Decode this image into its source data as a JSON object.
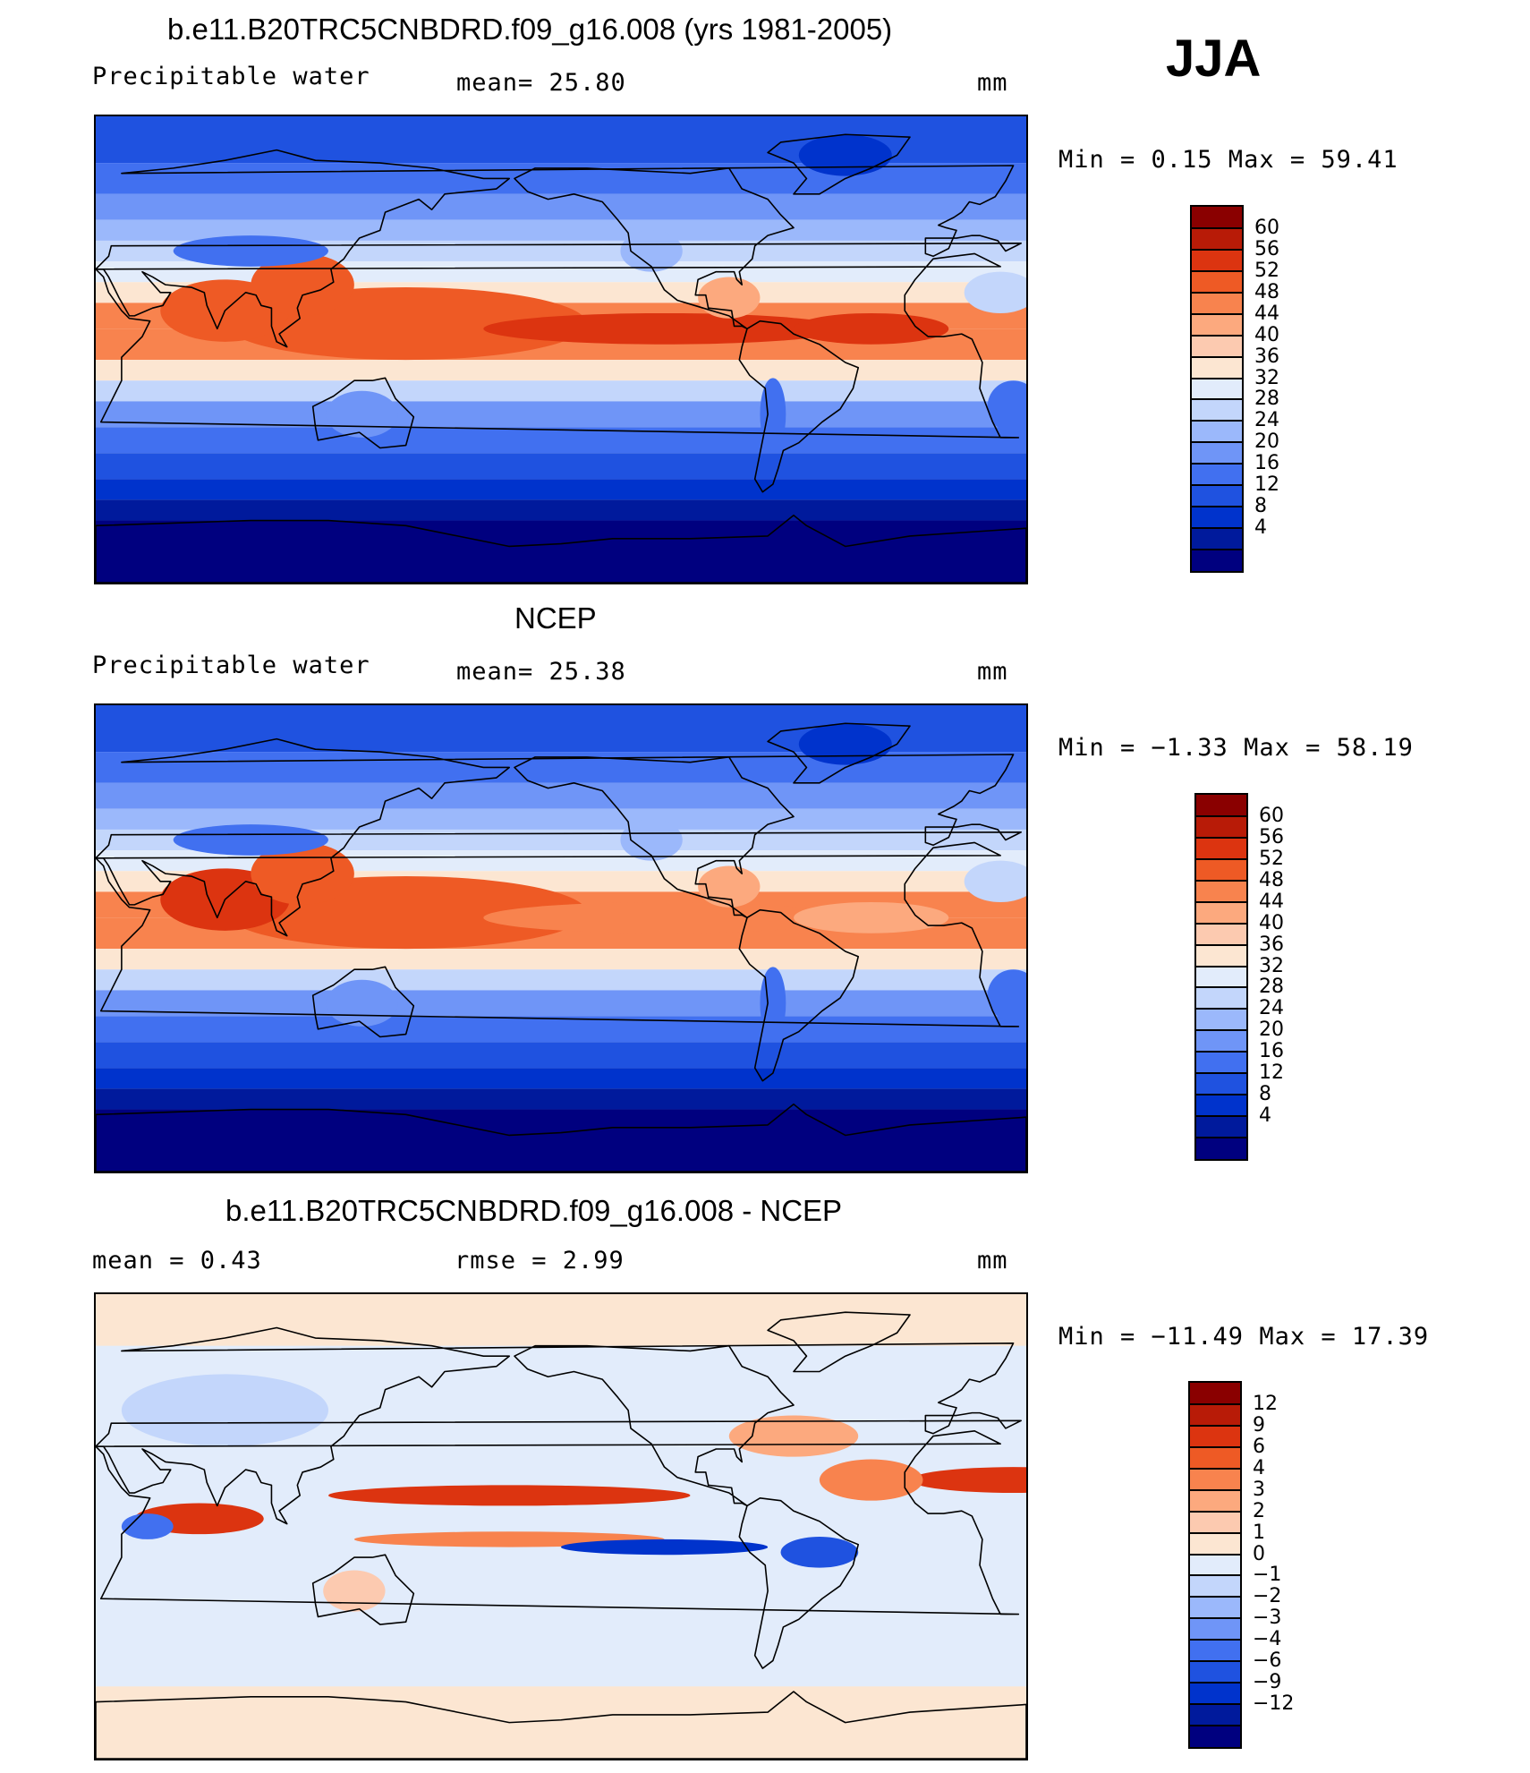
{
  "season": "JJA",
  "colors": {
    "abs_scale": [
      "#00007f",
      "#001a9c",
      "#0033cc",
      "#1f52e0",
      "#4170f0",
      "#6f95f7",
      "#9bb8fb",
      "#c3d6fb",
      "#e2ecfb",
      "#fce6d2",
      "#fccab0",
      "#fca97e",
      "#f8834e",
      "#ee5a25",
      "#dc3410",
      "#b81b07",
      "#8a0000"
    ],
    "diff_scale": [
      "#00007f",
      "#001a9c",
      "#0033cc",
      "#1f52e0",
      "#4170f0",
      "#6f95f7",
      "#9bb8fb",
      "#c3d6fb",
      "#e2ecfb",
      "#fce6d2",
      "#fccab0",
      "#fca97e",
      "#f8834e",
      "#ee5a25",
      "#dc3410",
      "#b81b07",
      "#8a0000"
    ]
  },
  "panels": [
    {
      "title": "b.e11.B20TRC5CNBDRD.f09_g16.008 (yrs 1981-2005)",
      "left_label": "Precipitable  water",
      "center_label": "mean=   25.80",
      "units": "mm",
      "minmax": "Min  =    0.15  Max  =   59.41"
    },
    {
      "title": "NCEP",
      "left_label": "Precipitable  water",
      "center_label": "mean=   25.38",
      "units": "mm",
      "minmax": "Min  =   −1.33  Max  =   58.19"
    },
    {
      "title": "b.e11.B20TRC5CNBDRD.f09_g16.008 - NCEP",
      "left_label": "mean  =     0.43",
      "center_label": "rmse  =     2.99",
      "units": "mm",
      "minmax": "Min  =  −11.49  Max  =   17.39"
    }
  ],
  "chart_data": [
    {
      "type": "heatmap",
      "title": "b.e11.B20TRC5CNBDRD.f09_g16.008 (yrs 1981-2005)",
      "variable": "Precipitable water",
      "units": "mm",
      "season": "JJA",
      "mean": 25.8,
      "min": 0.15,
      "max": 59.41,
      "colorbar_levels": [
        60,
        56,
        52,
        48,
        44,
        40,
        36,
        32,
        28,
        24,
        20,
        16,
        12,
        8,
        4
      ]
    },
    {
      "type": "heatmap",
      "title": "NCEP",
      "variable": "Precipitable water",
      "units": "mm",
      "season": "JJA",
      "mean": 25.38,
      "min": -1.33,
      "max": 58.19,
      "colorbar_levels": [
        60,
        56,
        52,
        48,
        44,
        40,
        36,
        32,
        28,
        24,
        20,
        16,
        12,
        8,
        4
      ]
    },
    {
      "type": "heatmap",
      "title": "b.e11.B20TRC5CNBDRD.f09_g16.008 - NCEP",
      "units": "mm",
      "season": "JJA",
      "mean": 0.43,
      "rmse": 2.99,
      "min": -11.49,
      "max": 17.39,
      "colorbar_levels": [
        12,
        9,
        6,
        4,
        3,
        2,
        1,
        0,
        -1,
        -2,
        -3,
        -4,
        -6,
        -9,
        -12
      ]
    }
  ],
  "colorbar_labels": [
    [
      "60",
      "56",
      "52",
      "48",
      "44",
      "40",
      "36",
      "32",
      "28",
      "24",
      "20",
      "16",
      "12",
      "8",
      "4"
    ],
    [
      "60",
      "56",
      "52",
      "48",
      "44",
      "40",
      "36",
      "32",
      "28",
      "24",
      "20",
      "16",
      "12",
      "8",
      "4"
    ],
    [
      "12",
      "9",
      "6",
      "4",
      "3",
      "2",
      "1",
      "0",
      "−1",
      "−2",
      "−3",
      "−4",
      "−6",
      "−9",
      "−12"
    ]
  ]
}
